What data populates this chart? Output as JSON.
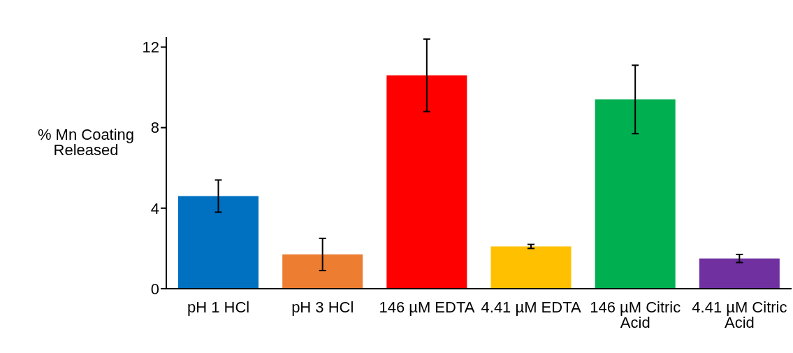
{
  "chart_data": {
    "type": "bar",
    "ylabel": "% Mn Coating Released",
    "categories": [
      "pH 1 HCl",
      "pH 3 HCl",
      "146 µM EDTA",
      "4.41 µM EDTA",
      "146 µM Citric Acid",
      "4.41 µM Citric Acid"
    ],
    "values": [
      4.6,
      1.7,
      10.6,
      2.1,
      9.4,
      1.5
    ],
    "errors": [
      0.8,
      0.8,
      1.8,
      0.1,
      1.7,
      0.2
    ],
    "colors": [
      "#0070c0",
      "#ed7d31",
      "#ff0000",
      "#ffc000",
      "#00b050",
      "#7030a0"
    ],
    "ylim": [
      0,
      12.5
    ],
    "yticks": [
      0,
      4,
      8,
      12
    ],
    "grid": false,
    "legend": false
  }
}
